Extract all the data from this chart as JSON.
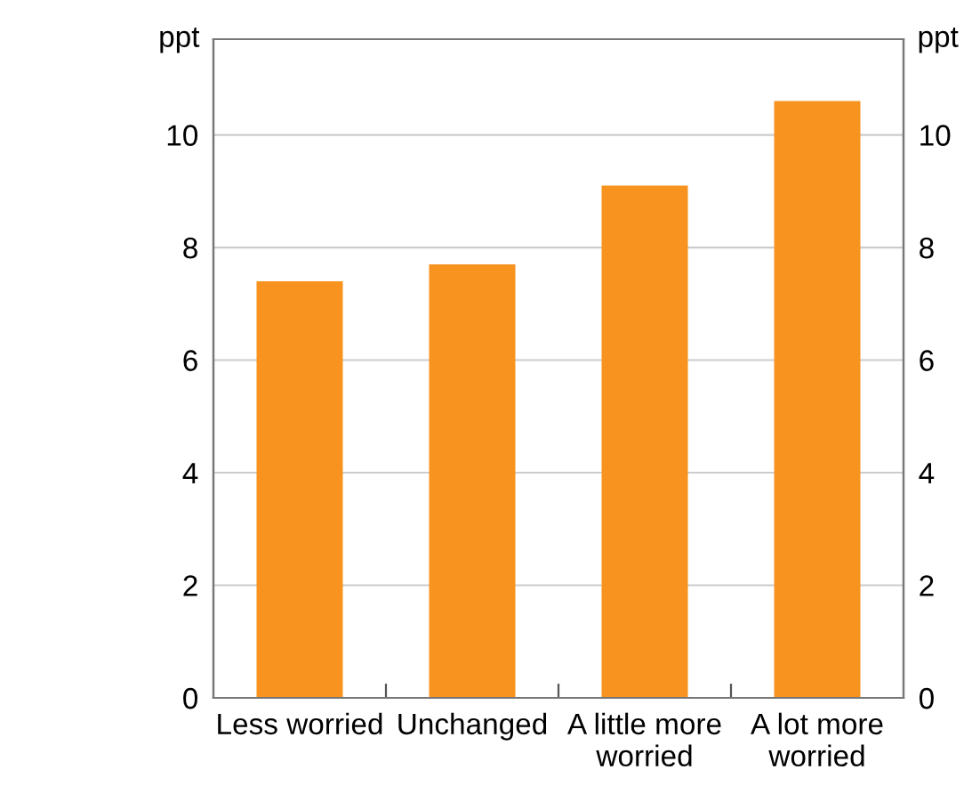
{
  "chart_data": {
    "type": "bar",
    "ylabel": "ppt",
    "y2label": "ppt",
    "categories": [
      "Less worried",
      "Unchanged",
      "A little more\nworried",
      "A lot more\nworried"
    ],
    "values": [
      7.4,
      7.7,
      9.1,
      10.6
    ],
    "color": "#f7931e",
    "ylim": [
      0,
      11.7
    ],
    "yticks": [
      0,
      2,
      4,
      6,
      8,
      10
    ],
    "y2lim": [
      0,
      11.7
    ],
    "y2ticks": [
      0,
      2,
      4,
      6,
      8,
      10
    ],
    "grid": "y"
  }
}
